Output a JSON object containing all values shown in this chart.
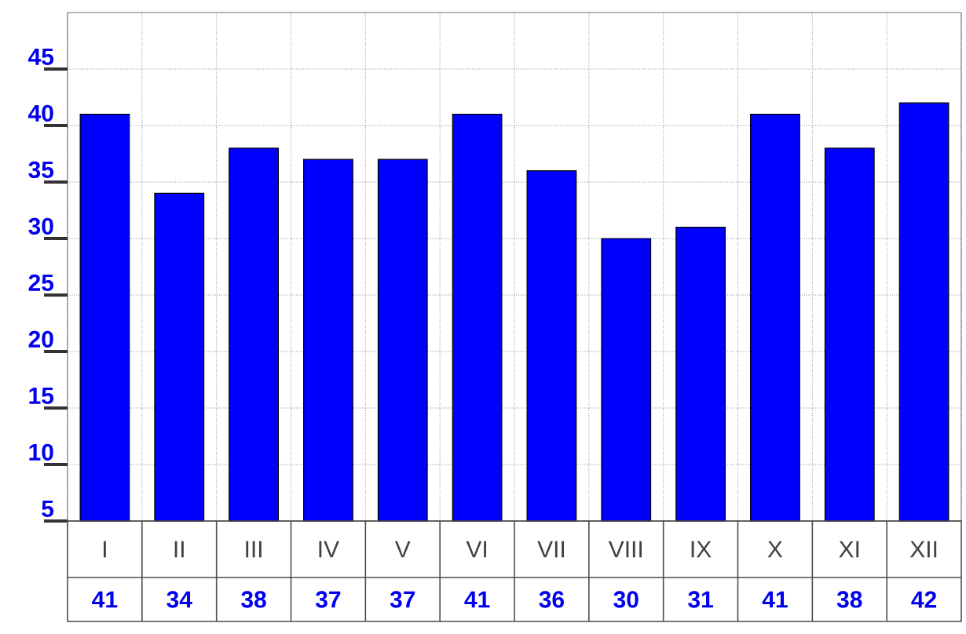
{
  "chart_data": {
    "type": "bar",
    "categories": [
      "I",
      "II",
      "III",
      "IV",
      "V",
      "VI",
      "VII",
      "VIII",
      "IX",
      "X",
      "XI",
      "XII"
    ],
    "values": [
      41,
      34,
      38,
      37,
      37,
      41,
      36,
      30,
      31,
      41,
      38,
      42
    ],
    "color": "#0000ff",
    "ylim": [
      5,
      50
    ],
    "yticks": [
      5,
      10,
      15,
      20,
      25,
      30,
      35,
      40,
      45
    ],
    "grid": true,
    "data_labels": true
  }
}
